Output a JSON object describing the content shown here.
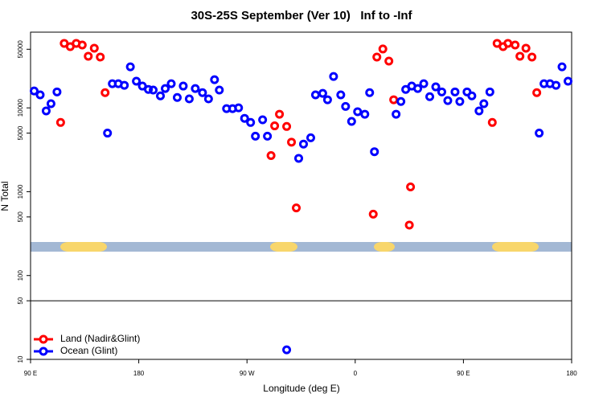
{
  "chart_data": {
    "type": "scatter",
    "title": "30S-25S September (Ver 10)   Inf to -Inf",
    "x_label": "Longitude (deg E)",
    "y_label": "N Total",
    "log_y": true,
    "legend": "lower left",
    "xlim": [
      90,
      540
    ],
    "xticks": [
      {
        "value": 90,
        "label": "90 E"
      },
      {
        "value": 180,
        "label": "180"
      },
      {
        "value": 270,
        "label": "90 W"
      },
      {
        "value": 360,
        "label": "0"
      },
      {
        "value": 450,
        "label": "90 E"
      },
      {
        "value": 540,
        "label": "180"
      }
    ],
    "ylim": [
      10,
      80000
    ],
    "yticks": [
      10,
      50,
      100,
      500,
      1000,
      5000,
      10000,
      50000
    ],
    "reference_line": 50,
    "series": [
      {
        "name": "Land (Nadir&Glint)",
        "color": "#ff0000",
        "x": [
          115,
          118,
          123,
          128,
          133,
          138,
          143,
          148,
          152,
          290,
          293,
          297,
          303,
          307,
          311,
          375,
          378,
          383,
          388,
          392,
          406,
          405,
          474,
          478,
          483,
          487,
          493,
          497,
          502,
          507,
          511
        ],
        "values": [
          6700,
          58800,
          53800,
          58800,
          56200,
          41300,
          51500,
          40400,
          15200,
          2700,
          6100,
          8400,
          6000,
          3900,
          640,
          540,
          40400,
          50400,
          36100,
          12500,
          1140,
          400,
          6700,
          58800,
          53800,
          58800,
          56200,
          41300,
          51500,
          40400,
          15200
        ]
      },
      {
        "name": "Ocean (Glint)",
        "color": "#0000ff",
        "x": [
          93,
          98,
          103,
          107,
          112,
          154,
          158,
          163,
          168,
          173,
          178,
          183,
          188,
          192,
          198,
          202,
          207,
          212,
          217,
          222,
          227,
          233,
          238,
          243,
          247,
          253,
          258,
          263,
          268,
          273,
          277,
          283,
          287,
          313,
          317,
          323,
          327,
          333,
          337,
          342,
          348,
          352,
          357,
          362,
          368,
          372,
          376,
          394,
          398,
          402,
          407,
          412,
          417,
          422,
          427,
          432,
          437,
          443,
          447,
          453,
          457,
          463,
          467,
          472,
          513,
          517,
          522,
          527,
          532,
          537,
          303
        ],
        "values": [
          15900,
          14300,
          9200,
          11200,
          15500,
          5000,
          19400,
          19400,
          18600,
          30900,
          20800,
          18200,
          16600,
          16300,
          13900,
          17000,
          19400,
          13300,
          18200,
          12800,
          17000,
          15200,
          12800,
          21700,
          16300,
          9800,
          9800,
          10000,
          7500,
          6700,
          4600,
          7200,
          4600,
          2500,
          3700,
          4400,
          14300,
          14900,
          12500,
          23700,
          14300,
          10400,
          6900,
          9000,
          8400,
          15200,
          3000,
          8400,
          11900,
          16600,
          18200,
          17000,
          19400,
          13600,
          17800,
          15500,
          12200,
          15500,
          11900,
          15500,
          13900,
          9200,
          11200,
          15500,
          5000,
          19400,
          19400,
          18600,
          30900,
          20800,
          13
        ]
      }
    ]
  }
}
